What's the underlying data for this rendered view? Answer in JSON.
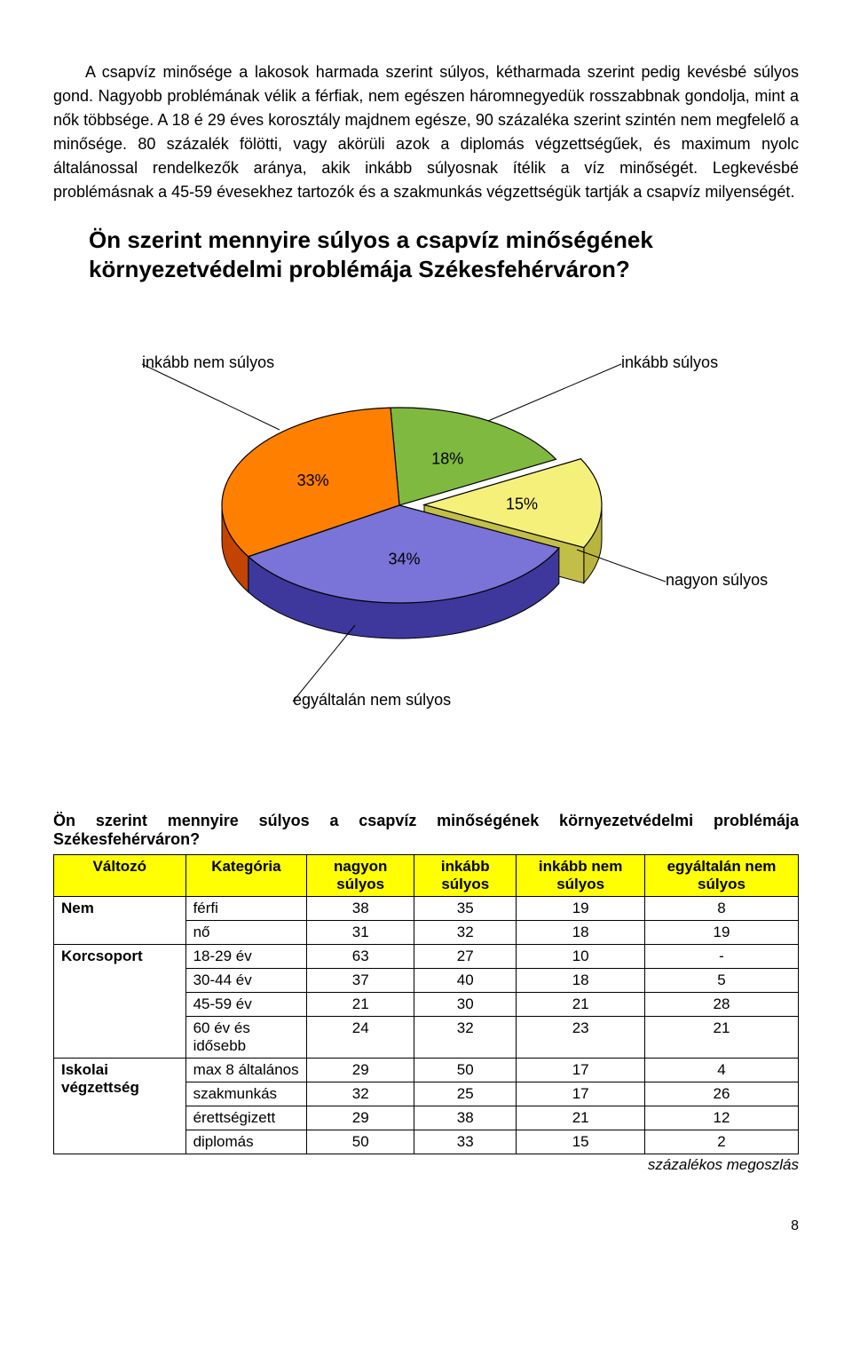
{
  "intro_text": "A csapvíz minősége a lakosok harmada szerint súlyos, kétharmada szerint pedig kevésbé súlyos gond. Nagyobb problémának vélik a férfiak, nem egészen háromnegyedük rosszabbnak gondolja, mint a nők többsége. A 18 é 29 éves korosztály majdnem egésze, 90 százaléka szerint szintén nem megfelelő a minősége. 80 százalék fölötti, vagy akörüli azok a diplomás végzettségűek, és maximum nyolc általánossal rendelkezők aránya, akik inkább súlyosnak ítélik a víz minőségét. Legkevésbé problémásnak a 45-59 évesekhez tartozók és a szakmunkás végzettségük tartják a csapvíz milyenségét.",
  "chart": {
    "type": "pie",
    "title": "Ön szerint mennyire súlyos a csapvíz minőségének környezetvédelmi problémája Székesfehérváron?",
    "slices": [
      {
        "label": "inkább súlyos",
        "value": 18,
        "percent_label": "18%",
        "color": "#7fb93f",
        "border": "#000000"
      },
      {
        "label": "nagyon súlyos",
        "value": 15,
        "percent_label": "15%",
        "color": "#f5f07a",
        "border": "#000000",
        "exploded": true
      },
      {
        "label": "egyáltalán nem súlyos",
        "value": 34,
        "percent_label": "34%",
        "color": "#7a74d8",
        "border": "#000000"
      },
      {
        "label": "inkább nem súlyos",
        "value": 33,
        "percent_label": "33%",
        "color": "#ff7f00",
        "border": "#000000"
      }
    ],
    "label_fontsize": 18,
    "percent_fontsize": 18,
    "background_color": "#ffffff",
    "leader_color": "#000000"
  },
  "question_text": "Ön szerint mennyire súlyos a csapvíz minőségének környezetvédelmi problémája Székesfehérváron?",
  "table": {
    "header_bg": "#ffff00",
    "columns": [
      "Változó",
      "Kategória",
      "nagyon súlyos",
      "inkább súlyos",
      "inkább nem súlyos",
      "egyáltalán nem súlyos"
    ],
    "groups": [
      {
        "name": "Nem",
        "rows": [
          {
            "cat": "férfi",
            "vals": [
              "38",
              "35",
              "19",
              "8"
            ]
          },
          {
            "cat": "nő",
            "vals": [
              "31",
              "32",
              "18",
              "19"
            ]
          }
        ]
      },
      {
        "name": "Korcsoport",
        "rows": [
          {
            "cat": "18-29 év",
            "vals": [
              "63",
              "27",
              "10",
              "-"
            ]
          },
          {
            "cat": "30-44 év",
            "vals": [
              "37",
              "40",
              "18",
              "5"
            ]
          },
          {
            "cat": "45-59 év",
            "vals": [
              "21",
              "30",
              "21",
              "28"
            ]
          },
          {
            "cat": "60 év és idősebb",
            "vals": [
              "24",
              "32",
              "23",
              "21"
            ]
          }
        ]
      },
      {
        "name": "Iskolai végzettség",
        "rows": [
          {
            "cat": "max 8 általános",
            "vals": [
              "29",
              "50",
              "17",
              "4"
            ]
          },
          {
            "cat": "szakmunkás",
            "vals": [
              "32",
              "25",
              "17",
              "26"
            ]
          },
          {
            "cat": "érettségizett",
            "vals": [
              "29",
              "38",
              "21",
              "12"
            ]
          },
          {
            "cat": "diplomás",
            "vals": [
              "50",
              "33",
              "15",
              "2"
            ]
          }
        ]
      }
    ]
  },
  "footnote": "százalékos megoszlás",
  "page_number": "8"
}
